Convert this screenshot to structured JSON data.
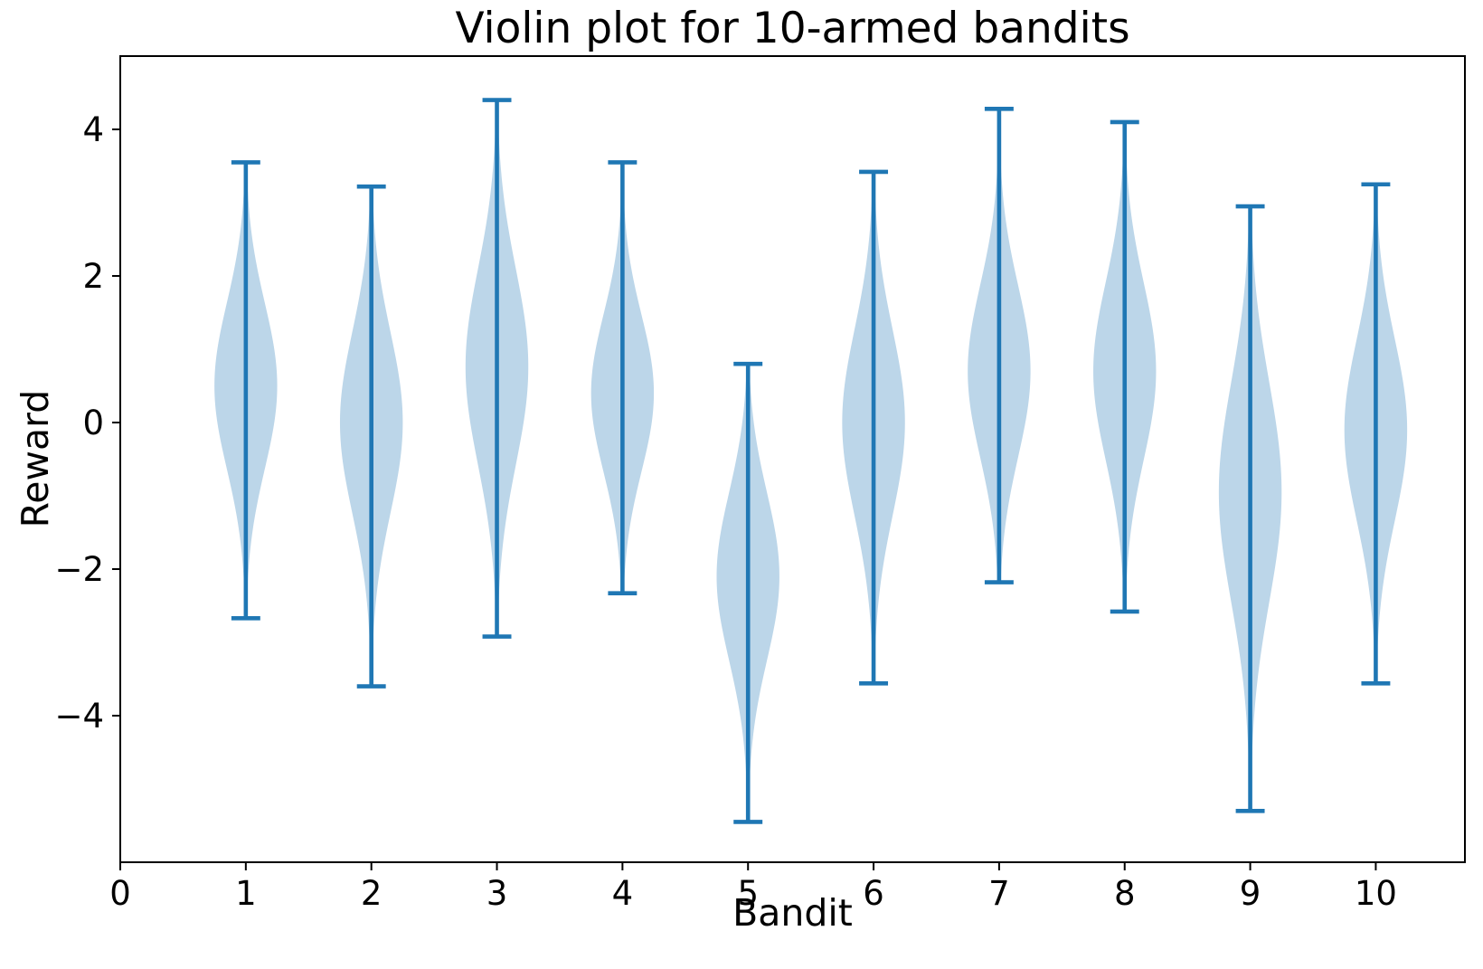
{
  "title": "Violin plot for 10-armed bandits",
  "chart_data": {
    "type": "violin",
    "title": "Violin plot for 10-armed bandits",
    "xlabel": "Bandit",
    "ylabel": "Reward",
    "xlim": [
      0,
      10.71
    ],
    "ylim": [
      -6,
      5
    ],
    "grid": false,
    "legend": false,
    "x_ticks": [
      {
        "value": 0,
        "label": "0"
      },
      {
        "value": 1,
        "label": "1"
      },
      {
        "value": 2,
        "label": "2"
      },
      {
        "value": 3,
        "label": "3"
      },
      {
        "value": 4,
        "label": "4"
      },
      {
        "value": 5,
        "label": "5"
      },
      {
        "value": 6,
        "label": "6"
      },
      {
        "value": 7,
        "label": "7"
      },
      {
        "value": 8,
        "label": "8"
      },
      {
        "value": 9,
        "label": "9"
      },
      {
        "value": 10,
        "label": "10"
      }
    ],
    "y_ticks": [
      {
        "value": -4,
        "label": "−4"
      },
      {
        "value": -2,
        "label": "−2"
      },
      {
        "value": 0,
        "label": "0"
      },
      {
        "value": 2,
        "label": "2"
      },
      {
        "value": 4,
        "label": "4"
      }
    ],
    "colors": {
      "violin_fill": "#bcd6e9",
      "violin_line": "#1f77b4",
      "axis": "#000000"
    },
    "violin_max_halfwidth": 0.25,
    "cap_halfwidth": 0.115,
    "violins": [
      {
        "bandit": 1,
        "max": 3.55,
        "min": -2.67,
        "mode": 0.5,
        "sigma": 1.13
      },
      {
        "bandit": 2,
        "max": 3.22,
        "min": -3.6,
        "mode": 0.0,
        "sigma": 1.24
      },
      {
        "bandit": 3,
        "max": 4.4,
        "min": -2.92,
        "mode": 0.76,
        "sigma": 1.33
      },
      {
        "bandit": 4,
        "max": 3.55,
        "min": -2.33,
        "mode": 0.4,
        "sigma": 1.07
      },
      {
        "bandit": 5,
        "max": 0.8,
        "min": -5.45,
        "mode": -2.1,
        "sigma": 1.14
      },
      {
        "bandit": 6,
        "max": 3.42,
        "min": -3.56,
        "mode": 0.0,
        "sigma": 1.27
      },
      {
        "bandit": 7,
        "max": 4.28,
        "min": -2.18,
        "mode": 0.7,
        "sigma": 1.17
      },
      {
        "bandit": 8,
        "max": 4.1,
        "min": -2.58,
        "mode": 0.7,
        "sigma": 1.21
      },
      {
        "bandit": 9,
        "max": 2.95,
        "min": -5.3,
        "mode": -0.95,
        "sigma": 1.5
      },
      {
        "bandit": 10,
        "max": 3.25,
        "min": -3.56,
        "mode": -0.1,
        "sigma": 1.24
      }
    ]
  }
}
